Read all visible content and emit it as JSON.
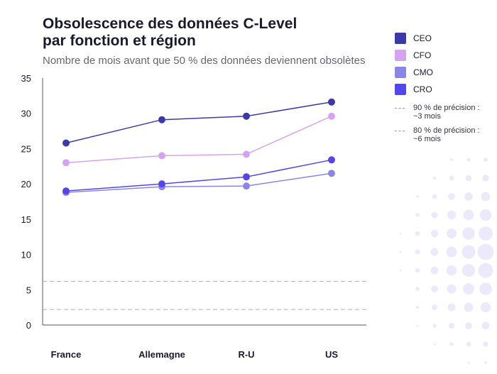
{
  "title_line1": "Obsolescence des données C-Level",
  "title_line2": "par fonction et région",
  "subtitle": "Nombre de mois avant que 50 % des données deviennent obsolètes",
  "legend": {
    "ref1_line1": "90 % de précision :",
    "ref1_line2": "~3 mois",
    "ref2_line1": "80 % de précision :",
    "ref2_line2": "~6 mois"
  },
  "chart_data": {
    "type": "line",
    "categories": [
      "France",
      "Allemagne",
      "R-U",
      "US"
    ],
    "ylim": [
      0,
      35
    ],
    "yticks": [
      0,
      5,
      10,
      15,
      20,
      25,
      30,
      35
    ],
    "series": [
      {
        "name": "CEO",
        "color": "#3d3aa8",
        "values": [
          25.8,
          29.1,
          29.6,
          31.6
        ]
      },
      {
        "name": "CFO",
        "color": "#d6a3f0",
        "values": [
          23.0,
          24.0,
          24.2,
          29.6
        ]
      },
      {
        "name": "CMO",
        "color": "#8a86e6",
        "values": [
          18.8,
          19.6,
          19.7,
          21.5
        ]
      },
      {
        "name": "CRO",
        "color": "#5546e8",
        "values": [
          19.0,
          20.0,
          21.0,
          23.4
        ]
      }
    ],
    "reference_lines": [
      {
        "value": 2.2,
        "color": "#b0b0b0"
      },
      {
        "value": 6.2,
        "color": "#b0b0b0"
      }
    ]
  }
}
